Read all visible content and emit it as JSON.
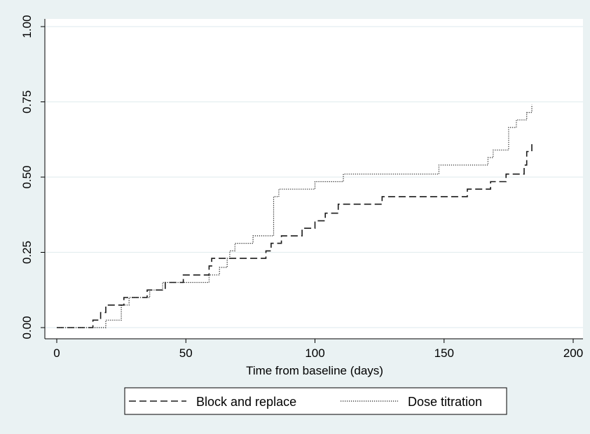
{
  "chart_data": {
    "type": "line",
    "title": "",
    "xlabel": "Time from baseline (days)",
    "ylabel": "",
    "xlim": [
      0,
      200
    ],
    "ylim": [
      0,
      1
    ],
    "x_ticks": [
      "0",
      "50",
      "100",
      "150",
      "200"
    ],
    "y_ticks": [
      "0.00",
      "0.25",
      "0.50",
      "0.75",
      "1.00"
    ],
    "grid": "horizontal",
    "legend_position": "bottom",
    "step": true,
    "series": [
      {
        "name": "Block and replace",
        "dash": "long-dash",
        "points": [
          [
            0,
            0
          ],
          [
            14,
            0
          ],
          [
            14,
            0.025
          ],
          [
            17,
            0.025
          ],
          [
            17,
            0.05
          ],
          [
            19,
            0.05
          ],
          [
            19,
            0.075
          ],
          [
            26,
            0.075
          ],
          [
            26,
            0.1
          ],
          [
            35,
            0.1
          ],
          [
            35,
            0.125
          ],
          [
            42,
            0.125
          ],
          [
            42,
            0.15
          ],
          [
            49,
            0.15
          ],
          [
            49,
            0.175
          ],
          [
            59,
            0.175
          ],
          [
            59,
            0.205
          ],
          [
            60,
            0.205
          ],
          [
            60,
            0.23
          ],
          [
            81,
            0.23
          ],
          [
            81,
            0.255
          ],
          [
            83,
            0.255
          ],
          [
            83,
            0.28
          ],
          [
            87,
            0.28
          ],
          [
            87,
            0.305
          ],
          [
            95,
            0.305
          ],
          [
            95,
            0.33
          ],
          [
            100,
            0.33
          ],
          [
            100,
            0.355
          ],
          [
            104,
            0.355
          ],
          [
            104,
            0.38
          ],
          [
            109,
            0.38
          ],
          [
            109,
            0.41
          ],
          [
            126,
            0.41
          ],
          [
            126,
            0.435
          ],
          [
            159,
            0.435
          ],
          [
            159,
            0.46
          ],
          [
            168,
            0.46
          ],
          [
            168,
            0.485
          ],
          [
            174,
            0.485
          ],
          [
            174,
            0.51
          ],
          [
            181,
            0.51
          ],
          [
            181,
            0.54
          ],
          [
            182,
            0.54
          ],
          [
            182,
            0.585
          ],
          [
            184,
            0.585
          ],
          [
            184,
            0.61
          ]
        ]
      },
      {
        "name": "Dose titration",
        "dash": "dotted",
        "points": [
          [
            0,
            0
          ],
          [
            19,
            0
          ],
          [
            19,
            0.025
          ],
          [
            25,
            0.025
          ],
          [
            25,
            0.075
          ],
          [
            28,
            0.075
          ],
          [
            28,
            0.1
          ],
          [
            36,
            0.1
          ],
          [
            36,
            0.125
          ],
          [
            41,
            0.125
          ],
          [
            41,
            0.15
          ],
          [
            59,
            0.15
          ],
          [
            59,
            0.175
          ],
          [
            63,
            0.175
          ],
          [
            63,
            0.2
          ],
          [
            66,
            0.2
          ],
          [
            66,
            0.23
          ],
          [
            67,
            0.23
          ],
          [
            67,
            0.255
          ],
          [
            69,
            0.255
          ],
          [
            69,
            0.28
          ],
          [
            76,
            0.28
          ],
          [
            76,
            0.305
          ],
          [
            84,
            0.305
          ],
          [
            84,
            0.435
          ],
          [
            86,
            0.435
          ],
          [
            86,
            0.46
          ],
          [
            100,
            0.46
          ],
          [
            100,
            0.485
          ],
          [
            111,
            0.485
          ],
          [
            111,
            0.51
          ],
          [
            148,
            0.51
          ],
          [
            148,
            0.54
          ],
          [
            167,
            0.54
          ],
          [
            167,
            0.565
          ],
          [
            169,
            0.565
          ],
          [
            169,
            0.59
          ],
          [
            175,
            0.59
          ],
          [
            175,
            0.665
          ],
          [
            178,
            0.665
          ],
          [
            178,
            0.69
          ],
          [
            182,
            0.69
          ],
          [
            182,
            0.715
          ],
          [
            184,
            0.715
          ],
          [
            184,
            0.74
          ]
        ]
      }
    ]
  },
  "colors": {
    "outer_background": "#eaf2f3",
    "plot_background": "#ffffff",
    "grid": "#e4eef0",
    "line": "#1a1a1a"
  }
}
